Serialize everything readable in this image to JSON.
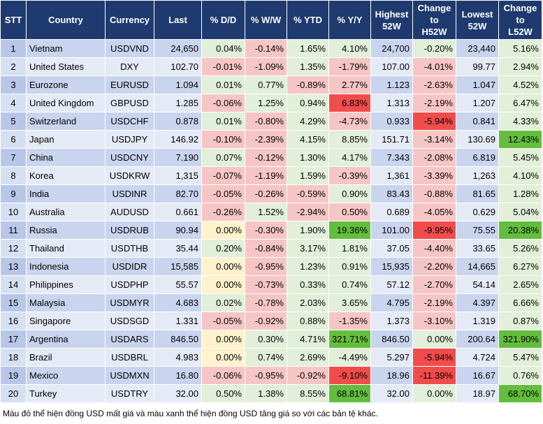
{
  "table": {
    "headers": [
      "STT",
      "Country",
      "Currency",
      "Last",
      "% D/D",
      "% W/W",
      "% YTD",
      "% Y/Y",
      "Highest\n52W",
      "Change\nto\nH52W",
      "Lowest\n52W",
      "Change\nto\nL52W"
    ],
    "rows": [
      [
        "1",
        "Vietnam",
        "USDVND",
        "24,650",
        "0.04%",
        "-0.14%",
        "1.65%",
        "4.10%",
        "24,700",
        "-0.20%",
        "23,440",
        "5.16%"
      ],
      [
        "2",
        "United States",
        "DXY",
        "102.70",
        "-0.01%",
        "-1.09%",
        "1.35%",
        "-1.79%",
        "107.00",
        "-4.01%",
        "99.77",
        "2.94%"
      ],
      [
        "3",
        "Eurozone",
        "EURUSD",
        "1.094",
        "0.01%",
        "0.77%",
        "-0.89%",
        "2.77%",
        "1.123",
        "-2.63%",
        "1.047",
        "4.52%"
      ],
      [
        "4",
        "United Kingdom",
        "GBPUSD",
        "1.285",
        "-0.06%",
        "1.25%",
        "0.94%",
        "6.83%",
        "1.313",
        "-2.19%",
        "1.207",
        "6.47%"
      ],
      [
        "5",
        "Switzerland",
        "USDCHF",
        "0.878",
        "0.01%",
        "-0.80%",
        "4.29%",
        "-4.73%",
        "0.933",
        "-5.94%",
        "0.841",
        "4.33%"
      ],
      [
        "6",
        "Japan",
        "USDJPY",
        "146.92",
        "-0.10%",
        "-2.39%",
        "4.15%",
        "8.85%",
        "151.71",
        "-3.14%",
        "130.69",
        "12.43%"
      ],
      [
        "7",
        "China",
        "USDCNY",
        "7.190",
        "0.07%",
        "-0.12%",
        "1.30%",
        "4.17%",
        "7.343",
        "-2.08%",
        "6.819",
        "5.45%"
      ],
      [
        "8",
        "Korea",
        "USDKRW",
        "1,315",
        "-0.07%",
        "-1.19%",
        "1.59%",
        "-0.39%",
        "1,361",
        "-3.39%",
        "1,263",
        "4.10%"
      ],
      [
        "9",
        "India",
        "USDINR",
        "82.70",
        "-0.05%",
        "-0.26%",
        "-0.59%",
        "0.90%",
        "83.43",
        "-0.88%",
        "81.65",
        "1.28%"
      ],
      [
        "10",
        "Australia",
        "AUDUSD",
        "0.661",
        "-0.26%",
        "1.52%",
        "-2.94%",
        "0.50%",
        "0.689",
        "-4.05%",
        "0.629",
        "5.04%"
      ],
      [
        "11",
        "Russia",
        "USDRUB",
        "90.94",
        "0.00%",
        "-0.30%",
        "1.90%",
        "19.36%",
        "101.00",
        "-9.95%",
        "75.55",
        "20.38%"
      ],
      [
        "12",
        "Thailand",
        "USDTHB",
        "35.44",
        "0.20%",
        "-0.84%",
        "3.17%",
        "1.81%",
        "37.05",
        "-4.40%",
        "33.65",
        "5.26%"
      ],
      [
        "13",
        "Indonesia",
        "USDIDR",
        "15,585",
        "0.00%",
        "-0.95%",
        "1.23%",
        "0.91%",
        "15,935",
        "-2.20%",
        "14,665",
        "6.27%"
      ],
      [
        "14",
        "Philippines",
        "USDPHP",
        "55.57",
        "0.00%",
        "-0.73%",
        "0.33%",
        "0.74%",
        "57.12",
        "-2.70%",
        "54.14",
        "2.65%"
      ],
      [
        "15",
        "Malaysia",
        "USDMYR",
        "4.683",
        "0.02%",
        "-0.78%",
        "2.03%",
        "3.65%",
        "4.795",
        "-2.19%",
        "4.397",
        "6.66%"
      ],
      [
        "16",
        "Singapore",
        "USDSGD",
        "1.331",
        "-0.05%",
        "-0.92%",
        "0.88%",
        "-1.35%",
        "1.373",
        "-3.10%",
        "1.319",
        "0.87%"
      ],
      [
        "17",
        "Argentina",
        "USDARS",
        "846.50",
        "0.00%",
        "0.30%",
        "4.71%",
        "321.71%",
        "846.50",
        "0.00%",
        "200.64",
        "321.90%"
      ],
      [
        "18",
        "Brazil",
        "USDBRL",
        "4.983",
        "0.00%",
        "0.74%",
        "2.69%",
        "-4.49%",
        "5.297",
        "-5.94%",
        "4.724",
        "5.47%"
      ],
      [
        "19",
        "Mexico",
        "USDMXN",
        "16.80",
        "-0.06%",
        "-0.95%",
        "-0.92%",
        "-9.10%",
        "18.96",
        "-11.39%",
        "16.67",
        "0.76%"
      ],
      [
        "20",
        "Turkey",
        "USDTRY",
        "32.00",
        "0.50%",
        "1.38%",
        "8.55%",
        "68.81%",
        "32.00",
        "0.00%",
        "18.97",
        "68.70%"
      ]
    ]
  },
  "footnote": "Màu đỏ thể hiện đồng USD mất giá và màu xanh thể hiện đồng USD tăng giá so với các bản tệ khác."
}
